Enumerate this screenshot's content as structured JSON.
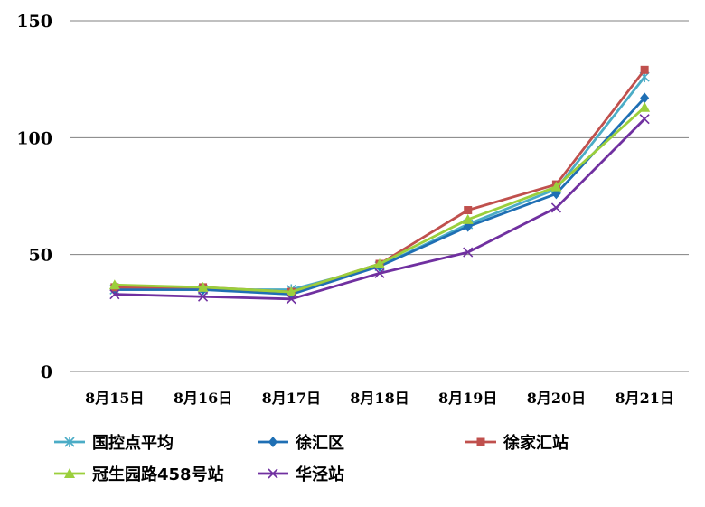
{
  "chart_data": {
    "type": "line",
    "categories": [
      "8月15日",
      "8月16日",
      "8月17日",
      "8月18日",
      "8月19日",
      "8月20日",
      "8月21日"
    ],
    "ylim": [
      0,
      150
    ],
    "yticks": [
      0,
      50,
      100,
      150
    ],
    "grid": true,
    "legend_position": "bottom",
    "series": [
      {
        "name": "国控点平均",
        "color": "#4bacc6",
        "marker": "asterisk",
        "values": [
          35,
          35,
          35,
          45,
          63,
          78,
          126
        ]
      },
      {
        "name": "徐汇区",
        "color": "#1f6fb4",
        "marker": "diamond",
        "values": [
          35,
          35,
          33,
          45,
          62,
          76,
          117
        ]
      },
      {
        "name": "徐家汇站",
        "color": "#c0504d",
        "marker": "square",
        "values": [
          36,
          36,
          34,
          46,
          69,
          80,
          129
        ]
      },
      {
        "name": "冠生园路458号站",
        "color": "#9bcf3c",
        "marker": "triangle",
        "values": [
          37,
          36,
          34,
          46,
          65,
          79,
          113
        ]
      },
      {
        "name": "华泾站",
        "color": "#7030a0",
        "marker": "star",
        "values": [
          33,
          32,
          31,
          42,
          51,
          70,
          108
        ]
      }
    ]
  }
}
